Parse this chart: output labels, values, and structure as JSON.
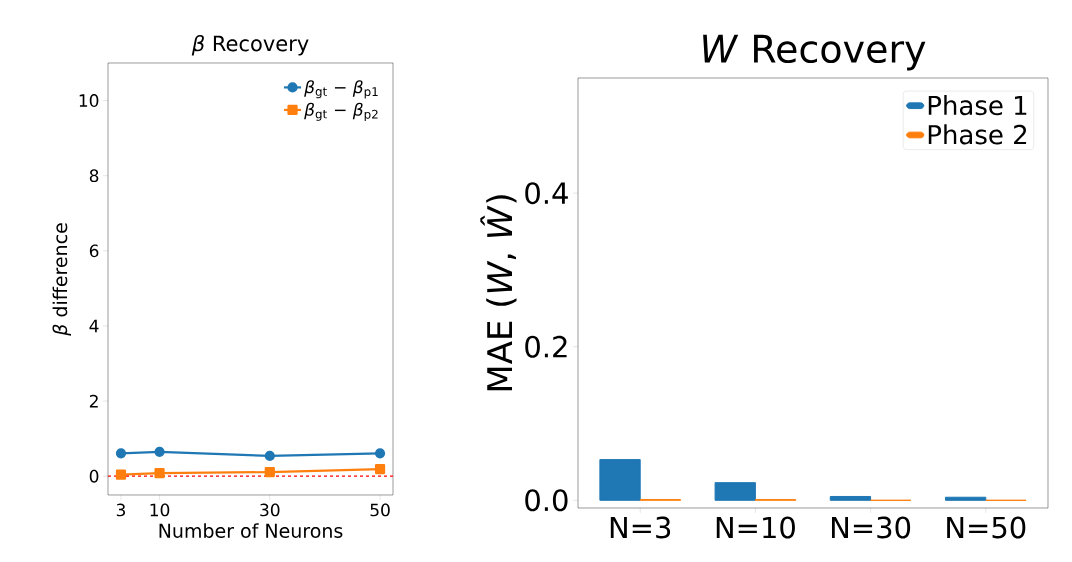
{
  "chart_data": [
    {
      "type": "line",
      "title": "*β* Recovery",
      "xlabel": "Number of Neurons",
      "ylabel": "*β* difference",
      "x": [
        3,
        10,
        30,
        50
      ],
      "series": [
        {
          "name": "*β*$_{gt}$ − *β*$_{p1}$",
          "color": "#1f77b4",
          "marker": "circle",
          "values": [
            0.61,
            0.65,
            0.54,
            0.61
          ]
        },
        {
          "name": "*β*$_{gt}$ − *β*$_{p2}$",
          "color": "#ff7f0e",
          "marker": "square",
          "values": [
            0.04,
            0.08,
            0.11,
            0.19
          ]
        }
      ],
      "xlim": [
        0.65,
        52.35
      ],
      "ylim": [
        -0.5,
        11
      ],
      "xticks": [
        3,
        10,
        30,
        50
      ],
      "yticks": [
        0,
        2,
        4,
        6,
        8,
        10
      ],
      "ref_lines": [
        {
          "axis": "y",
          "value": 0,
          "color": "#ff0000",
          "line_style": "dashed"
        }
      ],
      "legend": "top right",
      "line_style": "solid"
    },
    {
      "type": "bar",
      "title": "*W* Recovery",
      "ylabel": "MAE (*W*, *Ŵ*)",
      "categories": [
        "N=3",
        "N=10",
        "N=30",
        "N=50"
      ],
      "series": [
        {
          "name": "Phase 1",
          "color": "#1f77b4",
          "values": [
            0.053,
            0.023,
            0.005,
            0.004
          ]
        },
        {
          "name": "Phase 2",
          "color": "#ff7f0e",
          "values": [
            0.001,
            0.001,
            0,
            0
          ]
        }
      ],
      "ylim": [
        -0.01,
        0.55
      ],
      "yticks": [
        {
          "value": 0,
          "label": "0.0"
        },
        {
          "value": 0.2,
          "label": "0.2"
        },
        {
          "value": 0.4,
          "label": "0.4"
        }
      ],
      "legend": "top right"
    }
  ]
}
